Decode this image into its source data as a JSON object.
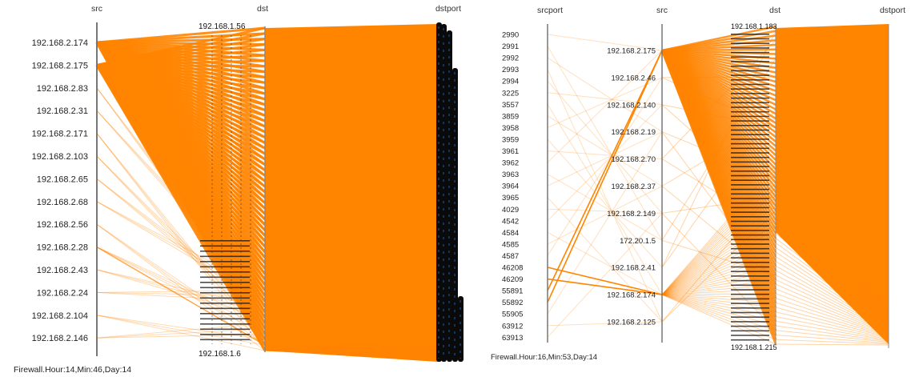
{
  "chart_data": [
    {
      "type": "parallel-coordinates",
      "footer": "Firewall.Hour:14,Min:46,Day:14",
      "axes": [
        "src",
        "dst",
        "dstport"
      ],
      "src_values": [
        "192.168.2.174",
        "192.168.2.175",
        "192.168.2.83",
        "192.168.2.31",
        "192.168.2.171",
        "192.168.2.103",
        "192.168.2.65",
        "192.168.2.68",
        "192.168.2.56",
        "192.168.2.28",
        "192.168.2.43",
        "192.168.2.24",
        "192.168.2.104",
        "192.168.2.146"
      ],
      "dst_visible_labels": [
        "192.168.1.56",
        "192.168.1.6"
      ],
      "heavy_sources": [
        "192.168.2.174",
        "192.168.2.175"
      ],
      "line_color": "#ff8400"
    },
    {
      "type": "parallel-coordinates",
      "footer": "Firewall.Hour:16,Min:53,Day:14",
      "axes": [
        "srcport",
        "src",
        "dst",
        "dstport"
      ],
      "srcport_values": [
        "2990",
        "2991",
        "2992",
        "2993",
        "2994",
        "3225",
        "3557",
        "3859",
        "3958",
        "3959",
        "3961",
        "3962",
        "3963",
        "3964",
        "3965",
        "4029",
        "4542",
        "4584",
        "4585",
        "4587",
        "46208",
        "46209",
        "55891",
        "55892",
        "55905",
        "63912",
        "63913"
      ],
      "src_values": [
        "192.168.2.175",
        "192.168.2.46",
        "192.168.2.140",
        "192.168.2.19",
        "192.168.2.70",
        "192.168.2.37",
        "192.168.2.149",
        "172.20.1.5",
        "192.168.2.41",
        "192.168.2.174",
        "192.168.2.125"
      ],
      "dst_visible_labels": [
        "192.168.1.183",
        "192.168.1.215"
      ],
      "heavy_sources": [
        "192.168.2.175",
        "192.168.2.174"
      ],
      "heavy_links": [
        [
          "55891",
          "192.168.2.175"
        ],
        [
          "55892",
          "192.168.2.175"
        ],
        [
          "46208",
          "192.168.2.174"
        ],
        [
          "46209",
          "192.168.2.174"
        ]
      ],
      "line_color": "#ff8400"
    }
  ]
}
